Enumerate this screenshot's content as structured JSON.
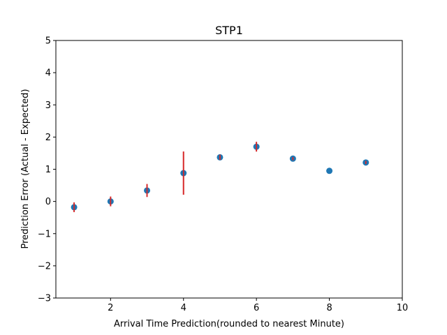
{
  "chart_data": {
    "type": "scatter",
    "title": "STP1",
    "xlabel": "Arrival Time Prediction(rounded to nearest Minute)",
    "ylabel": "Prediction Error (Actual - Expected)",
    "xlim": [
      0.5,
      10
    ],
    "ylim": [
      -3,
      5
    ],
    "xticks": [
      2,
      4,
      6,
      8,
      10
    ],
    "yticks": [
      -3,
      -2,
      -1,
      0,
      1,
      2,
      3,
      4,
      5
    ],
    "xtick_labels": [
      "2",
      "4",
      "6",
      "8",
      "10"
    ],
    "ytick_labels": [
      "−3",
      "−2",
      "−1",
      "0",
      "1",
      "2",
      "3",
      "4",
      "5"
    ],
    "grid": false,
    "series": [
      {
        "x": [
          1,
          2,
          3,
          4,
          5,
          6,
          7,
          8,
          9
        ],
        "y": [
          -0.18,
          0.0,
          0.34,
          0.88,
          1.37,
          1.7,
          1.33,
          0.95,
          1.21
        ],
        "yerr": [
          0.15,
          0.15,
          0.2,
          0.67,
          0.08,
          0.15,
          0.05,
          0.0,
          0.05
        ]
      }
    ],
    "colors": {
      "marker": "#1f77b4",
      "errorbar": "#d62728"
    }
  }
}
